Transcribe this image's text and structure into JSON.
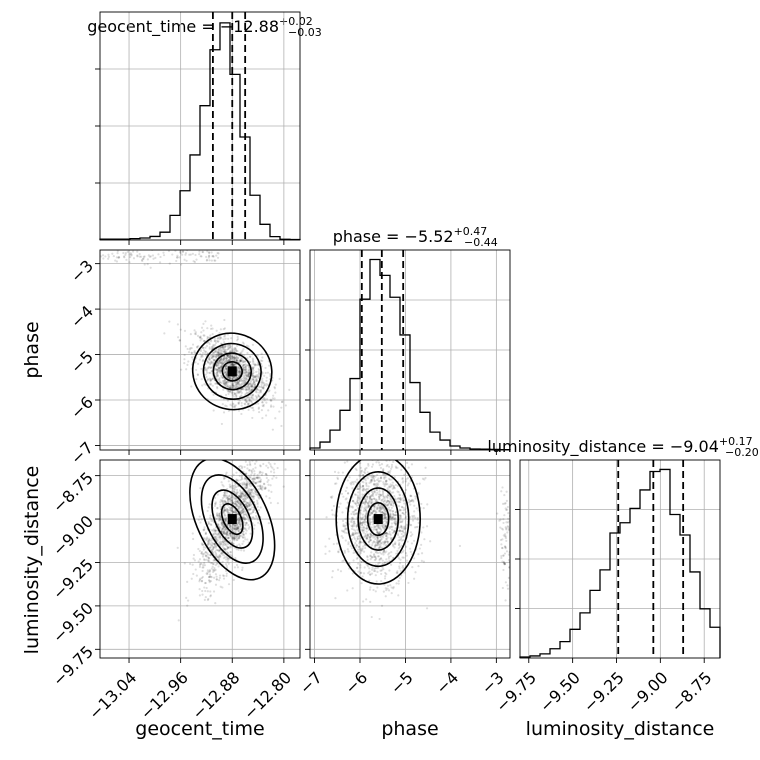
{
  "chart_data": [
    {
      "type": "histogram",
      "panel": "geocent_time-marginal",
      "parameter": "geocent_time",
      "title": {
        "lhs": "geocent_time = −12.88",
        "sup": "+0.02",
        "sub": "−0.03"
      },
      "xlim": [
        -13.085,
        -12.775
      ],
      "x_ticks": [
        -13.04,
        -12.96,
        -12.88,
        -12.8
      ],
      "x_tick_labels": [
        "−13.04",
        "−12.96",
        "−12.88",
        "−12.80"
      ],
      "bins": [
        -13.085,
        -13.0695,
        -13.054,
        -13.0385,
        -13.023,
        -13.0075,
        -12.992,
        -12.9765,
        -12.961,
        -12.9455,
        -12.93,
        -12.9145,
        -12.899,
        -12.8835,
        -12.868,
        -12.8525,
        -12.837,
        -12.8215,
        -12.806,
        -12.7905,
        -12.775
      ],
      "counts": [
        0.004,
        0.004,
        0.004,
        0.006,
        0.009,
        0.016,
        0.035,
        0.11,
        0.22,
        0.38,
        0.6,
        0.85,
        0.97,
        0.74,
        0.46,
        0.2,
        0.07,
        0.015,
        0.003,
        0.002
      ],
      "quantiles": [
        -12.91,
        -12.88,
        -12.86
      ]
    },
    {
      "type": "histogram",
      "panel": "phase-marginal",
      "parameter": "phase",
      "title": {
        "lhs": "phase = −5.52",
        "sup": "+0.47",
        "sub": "−0.44"
      },
      "xlim": [
        -7.1,
        -2.7
      ],
      "x_ticks": [
        -7,
        -6,
        -5,
        -4,
        -3
      ],
      "x_tick_labels": [
        "−7",
        "−6",
        "−5",
        "−4",
        "−3"
      ],
      "bins": [
        -7.1,
        -6.88,
        -6.66,
        -6.44,
        -6.22,
        -6.0,
        -5.78,
        -5.56,
        -5.34,
        -5.12,
        -4.9,
        -4.68,
        -4.46,
        -4.24,
        -4.02,
        -3.8,
        -3.58,
        -3.36,
        -3.14,
        -2.92,
        -2.7
      ],
      "counts": [
        0.01,
        0.04,
        0.1,
        0.2,
        0.36,
        0.76,
        0.96,
        0.88,
        0.77,
        0.58,
        0.34,
        0.19,
        0.09,
        0.05,
        0.02,
        0.01,
        0.005,
        0.004,
        0.003,
        0.002
      ],
      "quantiles": [
        -5.96,
        -5.52,
        -5.05
      ]
    },
    {
      "type": "histogram",
      "panel": "luminosity_distance-marginal",
      "parameter": "luminosity_distance",
      "title": {
        "lhs": "luminosity_distance = −9.04",
        "sup": "+0.17",
        "sub": "−0.20"
      },
      "xlim": [
        -9.8,
        -8.66
      ],
      "x_ticks": [
        -9.75,
        -9.5,
        -9.25,
        -9.0,
        -8.75
      ],
      "x_tick_labels": [
        "−9.75",
        "−9.50",
        "−9.25",
        "−9.00",
        "−8.75"
      ],
      "bins": [
        -9.8,
        -9.743,
        -9.686,
        -9.629,
        -9.572,
        -9.515,
        -9.458,
        -9.401,
        -9.344,
        -9.287,
        -9.23,
        -9.173,
        -9.116,
        -9.059,
        -9.002,
        -8.945,
        -8.888,
        -8.831,
        -8.774,
        -8.717,
        -8.66
      ],
      "counts": [
        0.005,
        0.01,
        0.02,
        0.045,
        0.08,
        0.14,
        0.22,
        0.33,
        0.43,
        0.61,
        0.66,
        0.73,
        0.82,
        0.91,
        0.92,
        0.7,
        0.6,
        0.42,
        0.24,
        0.15
      ],
      "quantiles": [
        -9.24,
        -9.04,
        -8.87
      ]
    },
    {
      "type": "scatter",
      "panel": "geocent_time-vs-phase",
      "x": "geocent_time",
      "y": "phase",
      "xlim": [
        -13.085,
        -12.775
      ],
      "ylim": [
        -7.1,
        -2.7
      ],
      "y_ticks": [
        -7,
        -6,
        -5,
        -4,
        -3
      ],
      "y_tick_labels": [
        "−7",
        "−6",
        "−5",
        "−4",
        "−3"
      ],
      "ylabel": "phase",
      "mode": [
        -12.88,
        -5.37
      ]
    },
    {
      "type": "scatter",
      "panel": "geocent_time-vs-luminosity_distance",
      "x": "geocent_time",
      "y": "luminosity_distance",
      "xlim": [
        -13.085,
        -12.775
      ],
      "ylim": [
        -9.8,
        -8.66
      ],
      "y_ticks": [
        -9.75,
        -9.5,
        -9.25,
        -9.0,
        -8.75
      ],
      "y_tick_labels": [
        "−9.75",
        "−9.50",
        "−9.25",
        "−9.00",
        "−8.75"
      ],
      "xlabel": "geocent_time",
      "ylabel": "luminosity_distance",
      "mode": [
        -12.88,
        -9.0
      ]
    },
    {
      "type": "scatter",
      "panel": "phase-vs-luminosity_distance",
      "x": "phase",
      "y": "luminosity_distance",
      "xlim": [
        -7.1,
        -2.7
      ],
      "ylim": [
        -9.8,
        -8.66
      ],
      "xlabel": "phase",
      "mode": [
        -5.6,
        -9.0
      ]
    }
  ]
}
